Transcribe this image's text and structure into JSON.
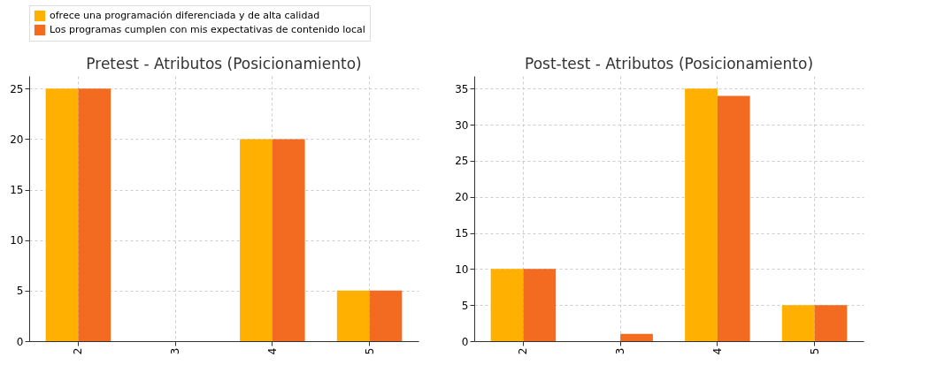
{
  "chart_data": [
    {
      "type": "bar",
      "title": "Pretest - Atributos (Posicionamiento)",
      "categories": [
        "2",
        "3",
        "4",
        "5"
      ],
      "series": [
        {
          "name": "ofrece una programación diferenciada y de alta calidad",
          "color": "#ffb000",
          "values": [
            25,
            0,
            20,
            5
          ]
        },
        {
          "name": "Los programas cumplen con mis expectativas de contenido local",
          "color": "#f26b21",
          "values": [
            25,
            0,
            20,
            5
          ]
        }
      ],
      "ylim": [
        0,
        26.25
      ],
      "yticks": [
        0,
        5,
        10,
        15,
        20,
        25
      ],
      "grid": true,
      "legend": "top"
    },
    {
      "type": "bar",
      "title": "Post-test - Atributos (Posicionamiento)",
      "categories": [
        "2",
        "3",
        "4",
        "5"
      ],
      "series": [
        {
          "name": "ofrece una programación diferenciada y de alta calidad",
          "color": "#ffb000",
          "values": [
            10,
            0,
            35,
            5
          ]
        },
        {
          "name": "Los programas cumplen con mis expectativas de contenido local",
          "color": "#f26b21",
          "values": [
            10,
            1,
            34,
            5
          ]
        }
      ],
      "ylim": [
        0,
        36.75
      ],
      "yticks": [
        0,
        5,
        10,
        15,
        20,
        25,
        30,
        35
      ],
      "grid": true,
      "legend": "top"
    }
  ]
}
